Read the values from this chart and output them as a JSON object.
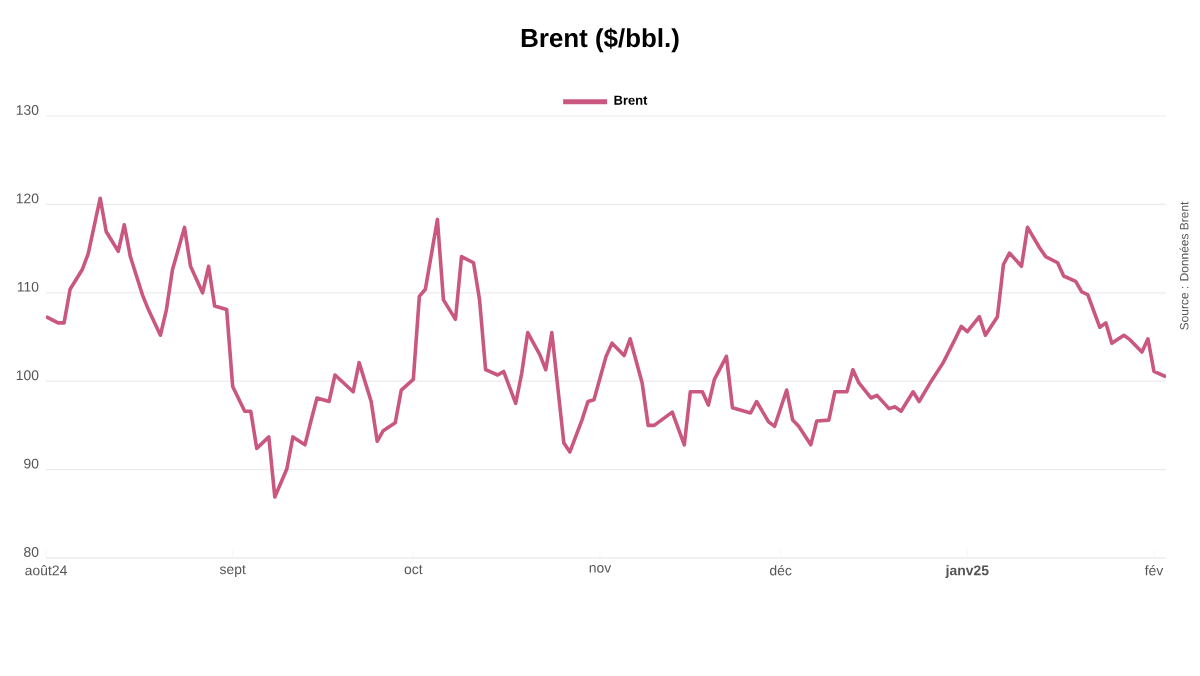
{
  "chart_data": {
    "type": "line",
    "title": "Brent ($/bbl.)",
    "annotations": [
      "Source : Données Brent"
    ],
    "xlim": [
      "2024-08-01",
      "2025-02-03"
    ],
    "xticks": [
      {
        "value": "2024-08-01",
        "label": "août24"
      },
      {
        "value": "2024-09-01",
        "label": "sept"
      },
      {
        "value": "2024-10-01",
        "label": "oct"
      },
      {
        "value": "2024-11-01",
        "label": "nov"
      },
      {
        "value": "2024-12-01",
        "label": "déc"
      },
      {
        "value": "2025-01-01",
        "label": "**janv25**"
      },
      {
        "value": "2025-02-01",
        "label": "fév"
      }
    ],
    "ylim": [
      80,
      130
    ],
    "yticks": [
      80,
      90,
      100,
      110,
      120,
      130
    ],
    "grid": "y",
    "legend": "top",
    "line_style": "solid",
    "x": [
      "2024-08-01",
      "2024-08-03",
      "2024-08-04",
      "2024-08-05",
      "2024-08-07",
      "2024-08-08",
      "2024-08-10",
      "2024-08-11",
      "2024-08-13",
      "2024-08-14",
      "2024-08-15",
      "2024-08-17",
      "2024-08-18",
      "2024-08-20",
      "2024-08-21",
      "2024-08-22",
      "2024-08-24",
      "2024-08-25",
      "2024-08-27",
      "2024-08-28",
      "2024-08-29",
      "2024-08-31",
      "2024-09-01",
      "2024-09-03",
      "2024-09-04",
      "2024-09-05",
      "2024-09-07",
      "2024-09-08",
      "2024-09-10",
      "2024-09-11",
      "2024-09-13",
      "2024-09-14",
      "2024-09-15",
      "2024-09-17",
      "2024-09-18",
      "2024-09-21",
      "2024-09-22",
      "2024-09-24",
      "2024-09-25",
      "2024-09-26",
      "2024-09-28",
      "2024-09-29",
      "2024-10-01",
      "2024-10-02",
      "2024-10-03",
      "2024-10-05",
      "2024-10-06",
      "2024-10-08",
      "2024-10-09",
      "2024-10-11",
      "2024-10-12",
      "2024-10-13",
      "2024-10-15",
      "2024-10-16",
      "2024-10-18",
      "2024-10-19",
      "2024-10-20",
      "2024-10-22",
      "2024-10-23",
      "2024-10-24",
      "2024-10-26",
      "2024-10-27",
      "2024-10-29",
      "2024-10-30",
      "2024-10-31",
      "2024-11-02",
      "2024-11-03",
      "2024-11-05",
      "2024-11-06",
      "2024-11-08",
      "2024-11-09",
      "2024-11-10",
      "2024-11-13",
      "2024-11-15",
      "2024-11-16",
      "2024-11-18",
      "2024-11-19",
      "2024-11-20",
      "2024-11-22",
      "2024-11-23",
      "2024-11-26",
      "2024-11-27",
      "2024-11-29",
      "2024-11-30",
      "2024-12-02",
      "2024-12-03",
      "2024-12-04",
      "2024-12-06",
      "2024-12-07",
      "2024-12-09",
      "2024-12-10",
      "2024-12-12",
      "2024-12-13",
      "2024-12-14",
      "2024-12-16",
      "2024-12-17",
      "2024-12-19",
      "2024-12-20",
      "2024-12-21",
      "2024-12-23",
      "2024-12-24",
      "2024-12-26",
      "2024-12-28",
      "2024-12-30",
      "2024-12-31",
      "2025-01-01",
      "2025-01-03",
      "2025-01-04",
      "2025-01-06",
      "2025-01-07",
      "2025-01-08",
      "2025-01-10",
      "2025-01-11",
      "2025-01-13",
      "2025-01-14",
      "2025-01-16",
      "2025-01-17",
      "2025-01-19",
      "2025-01-20",
      "2025-01-21",
      "2025-01-23",
      "2025-01-24",
      "2025-01-25",
      "2025-01-27",
      "2025-01-28",
      "2025-01-30",
      "2025-01-31",
      "2025-02-01",
      "2025-02-03"
    ],
    "series": [
      {
        "name": "Brent",
        "color": "#c9577f",
        "values": [
          107.3,
          106.6,
          106.6,
          110.4,
          112.6,
          114.4,
          120.7,
          116.9,
          114.7,
          117.7,
          114.1,
          109.8,
          108.1,
          105.2,
          108.1,
          112.6,
          117.4,
          113.0,
          110.0,
          113.0,
          108.5,
          108.1,
          99.4,
          96.6,
          96.6,
          92.4,
          93.7,
          86.9,
          90.1,
          93.7,
          92.8,
          95.5,
          98.1,
          97.7,
          100.7,
          98.8,
          102.1,
          97.7,
          93.2,
          94.4,
          95.3,
          99.0,
          100.2,
          109.6,
          110.4,
          118.3,
          109.2,
          107.0,
          114.1,
          113.4,
          109.2,
          101.3,
          100.7,
          101.1,
          97.5,
          100.9,
          105.5,
          103.0,
          101.3,
          105.5,
          93.0,
          92.0,
          95.6,
          97.7,
          97.9,
          102.8,
          104.3,
          102.9,
          104.8,
          99.8,
          95.0,
          95.0,
          96.5,
          92.8,
          98.8,
          98.8,
          97.3,
          100.2,
          102.8,
          97.0,
          96.4,
          97.7,
          95.4,
          94.9,
          99.0,
          95.6,
          94.9,
          92.8,
          95.5,
          95.6,
          98.8,
          98.8,
          101.3,
          99.8,
          98.1,
          98.4,
          96.9,
          97.1,
          96.6,
          98.8,
          97.7,
          100.0,
          102.1,
          104.8,
          106.2,
          105.6,
          107.3,
          105.2,
          107.3,
          113.2,
          114.5,
          113.0,
          117.4,
          115.1,
          114.1,
          113.4,
          111.9,
          111.3,
          110.1,
          109.8,
          106.1,
          106.6,
          104.3,
          105.2,
          104.7,
          103.3,
          104.8,
          101.1,
          100.5
        ]
      }
    ]
  }
}
